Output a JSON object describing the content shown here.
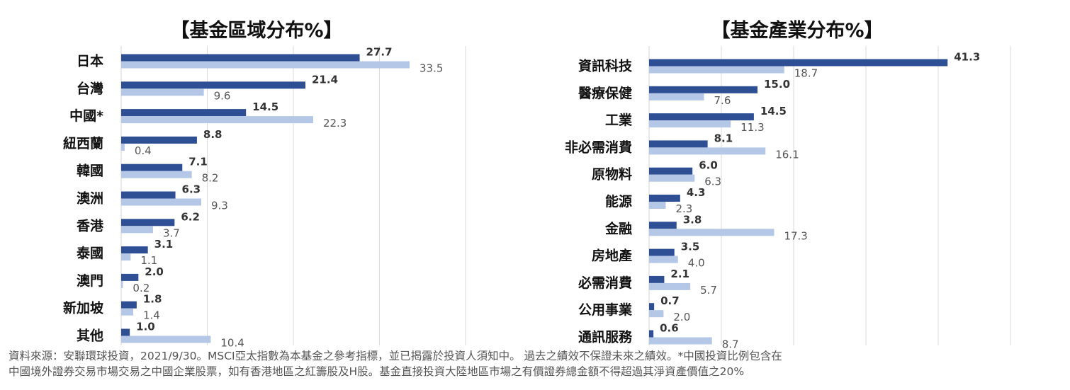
{
  "chart_data": [
    {
      "type": "bar",
      "orientation": "horizontal",
      "title": "【基金區域分布%】",
      "categories": [
        "日本",
        "台灣",
        "中國*",
        "紐西蘭",
        "韓國",
        "澳洲",
        "香港",
        "泰國",
        "澳門",
        "新加坡",
        "其他"
      ],
      "series": [
        {
          "color": "#2e4f94",
          "values": [
            27.7,
            21.4,
            14.5,
            8.8,
            7.1,
            6.3,
            6.2,
            3.1,
            2.0,
            1.8,
            1.0
          ],
          "labels": [
            "27.7",
            "21.4",
            "14.5",
            "8.8",
            "7.1",
            "6.3",
            "6.2",
            "3.1",
            "2.0",
            "1.8",
            "1.0"
          ]
        },
        {
          "color": "#b4c7e7",
          "values": [
            33.5,
            9.6,
            22.3,
            0.4,
            8.2,
            9.3,
            3.7,
            1.1,
            0.2,
            1.4,
            10.4
          ],
          "labels": [
            "33.5",
            "9.6",
            "22.3",
            "0.4",
            "8.2",
            "9.3",
            "3.7",
            "1.1",
            "0.2",
            "1.4",
            "10.4"
          ]
        }
      ],
      "xlim": [
        0,
        40
      ],
      "grid": true
    },
    {
      "type": "bar",
      "orientation": "horizontal",
      "title": "【基金產業分布%】",
      "categories": [
        "資訊科技",
        "醫療保健",
        "工業",
        "非必需消費",
        "原物料",
        "能源",
        "金融",
        "房地產",
        "必需消費",
        "公用事業",
        "通訊服務"
      ],
      "series": [
        {
          "color": "#2e4f94",
          "values": [
            41.3,
            15.0,
            14.5,
            8.1,
            6.0,
            4.3,
            3.8,
            3.5,
            2.1,
            0.7,
            0.6
          ],
          "labels": [
            "41.3",
            "15.0",
            "14.5",
            "8.1",
            "6.0",
            "4.3",
            "3.8",
            "3.5",
            "2.1",
            "0.7",
            "0.6"
          ]
        },
        {
          "color": "#b4c7e7",
          "values": [
            18.7,
            7.6,
            11.3,
            16.1,
            6.3,
            2.3,
            17.3,
            4.0,
            5.7,
            2.0,
            8.7
          ],
          "labels": [
            "18.7",
            "7.6",
            "11.3",
            "16.1",
            "6.3",
            "2.3",
            "17.3",
            "4.0",
            "5.7",
            "2.0",
            "8.7"
          ]
        }
      ],
      "xlim": [
        0,
        50
      ],
      "grid": true
    }
  ],
  "footnote": {
    "line1": "資料來源：安聯環球投資，2021/9/30。MSCI亞太指數為本基金之參考指標，並已揭露於投資人須知中。 過去之績效不保證未來之績效。*中國投資比例包含在",
    "line2": "中國境外證券交易市場交易之中國企業股票，如有香港地區之紅籌股及H股。基金直接投資大陸地區市場之有價證券總金額不得超過其淨資產價值之20%"
  }
}
